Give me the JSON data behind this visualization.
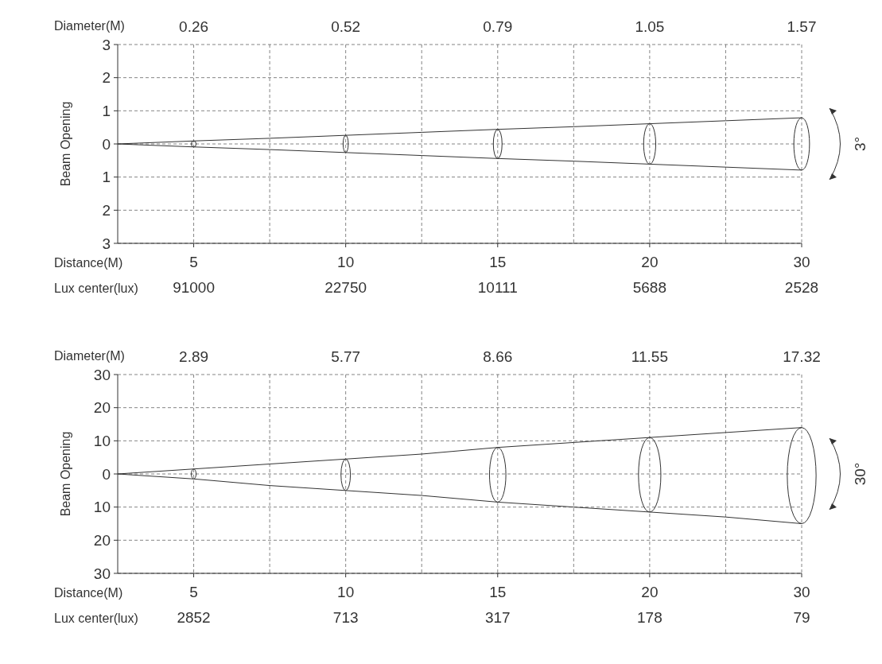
{
  "chart_data": [
    {
      "type": "line",
      "xlabel": "Distance(M)",
      "ylabel": "Beam Opening",
      "categories": [
        null,
        "5",
        null,
        "10",
        null,
        "15",
        null,
        "20",
        null,
        "30"
      ],
      "ylim": [
        -3,
        3
      ],
      "yticks": [
        {
          "value": 3,
          "label": "3"
        },
        {
          "value": 2,
          "label": "2"
        },
        {
          "value": 1,
          "label": "1"
        },
        {
          "value": 0,
          "label": "0"
        },
        {
          "value": -1,
          "label": "1"
        },
        {
          "value": -2,
          "label": "2"
        },
        {
          "value": -3,
          "label": "3"
        }
      ],
      "grid": true,
      "line_style": "solid",
      "series": [
        {
          "color": "#333333",
          "values": [
            0,
            0.09,
            0.17,
            0.26,
            0.35,
            0.44,
            0.52,
            0.61,
            0.7,
            0.79
          ]
        },
        {
          "color": "#333333",
          "values": [
            0,
            -0.09,
            -0.17,
            -0.26,
            -0.35,
            -0.44,
            -0.52,
            -0.61,
            -0.7,
            -0.79
          ]
        }
      ],
      "annotations": [
        "Diameter(M)",
        "Lux center(lux)",
        "3°",
        "0.26",
        "0.52",
        "0.79",
        "1.05",
        "1.57",
        "91000",
        "22750",
        "10111",
        "5688",
        "2528"
      ]
    },
    {
      "type": "line",
      "xlabel": "Distance(M)",
      "ylabel": "Beam Opening",
      "categories": [
        null,
        "5",
        null,
        "10",
        null,
        "15",
        null,
        "20",
        null,
        "30"
      ],
      "ylim": [
        -30,
        30
      ],
      "yticks": [
        30,
        20,
        10,
        0,
        {
          "value": -10,
          "label": "10"
        },
        {
          "value": -20,
          "label": "20"
        },
        {
          "value": -30,
          "label": "30"
        }
      ],
      "grid": true,
      "line_style": "solid",
      "series": [
        {
          "color": "#333333",
          "values": [
            0,
            1.5,
            3,
            4.5,
            6,
            8,
            9.5,
            11,
            12.5,
            14
          ]
        },
        {
          "color": "#333333",
          "values": [
            0,
            -1.5,
            -3.5,
            -5,
            -6.5,
            -8.5,
            -10,
            -11.5,
            -13,
            -15
          ]
        }
      ],
      "annotations": [
        "Diameter(M)",
        "Lux center(lux)",
        "30°",
        "2.89",
        "5.77",
        "8.66",
        "11.55",
        "17.32",
        "2852",
        "713",
        "317",
        "178",
        "79"
      ]
    }
  ]
}
